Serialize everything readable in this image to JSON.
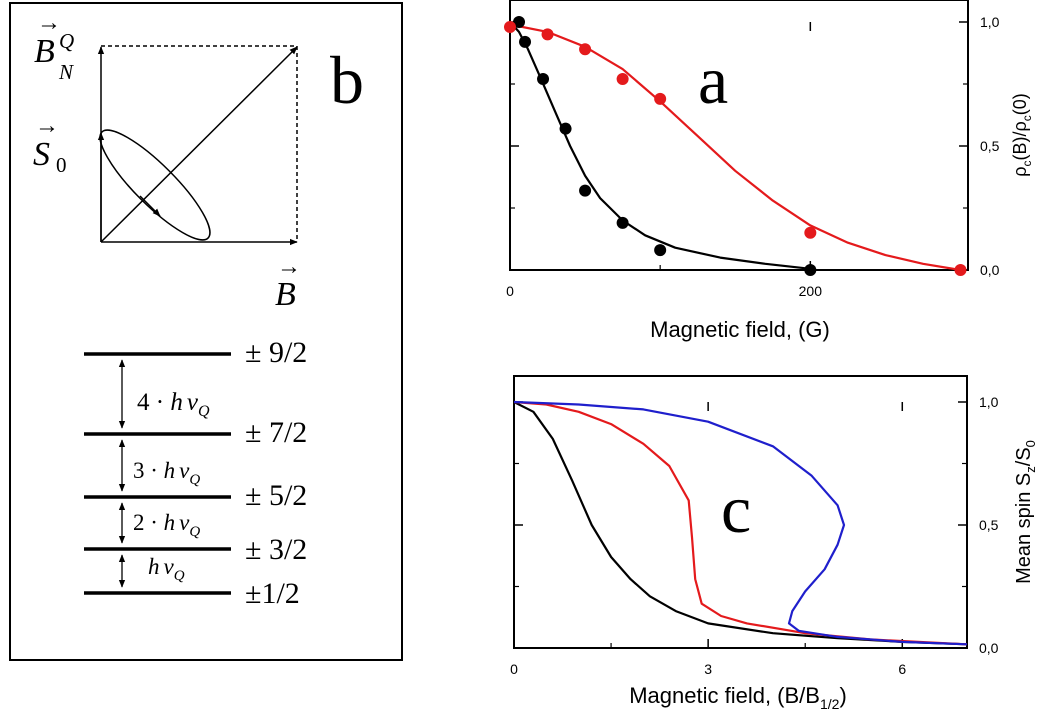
{
  "panel_b": {
    "label": "b",
    "vectors": {
      "bnq_main": "B",
      "bnq_sup": "Q",
      "bnq_sub": "N",
      "s_main": "S",
      "s_sub": "0",
      "b_main": "B"
    },
    "levels": [
      "± 9/2",
      "± 7/2",
      "± 5/2",
      "± 3/2",
      "±1/2"
    ],
    "gaps": [
      {
        "coef": "4 · ",
        "h": "h",
        "nu": "ν",
        "sub": "Q"
      },
      {
        "coef": "3 · ",
        "h": "h",
        "nu": "ν",
        "sub": "Q"
      },
      {
        "coef": "2 · ",
        "h": "h",
        "nu": "ν",
        "sub": "Q"
      },
      {
        "coef": "",
        "h": "h",
        "nu": "ν",
        "sub": "Q"
      }
    ],
    "colors": {
      "line": "#000000"
    }
  },
  "chart_data": [
    {
      "type": "scatter",
      "label": "a",
      "xlabel": "Magnetic field, (G)",
      "ylabel": {
        "p1": "ρ",
        "s1": "c",
        "p2": "(B)/ρ",
        "s2": "c",
        "p3": "(0)"
      },
      "xlim": [
        0,
        305
      ],
      "ylim": [
        0,
        1.0
      ],
      "xticks": [
        0,
        200
      ],
      "xticklabels": [
        "0",
        "200"
      ],
      "yticks": [
        0,
        0.5,
        1.0
      ],
      "yticklabels": [
        "0,0",
        "0,5",
        "1,0"
      ],
      "y_axis_side": "right",
      "series": [
        {
          "color": "#000000",
          "points": [
            [
              6,
              1.0
            ],
            [
              10,
              0.92
            ],
            [
              22,
              0.77
            ],
            [
              37,
              0.57
            ],
            [
              50,
              0.32
            ],
            [
              75,
              0.19
            ],
            [
              100,
              0.08
            ],
            [
              200,
              0.0
            ]
          ],
          "curve": [
            [
              0,
              1.0
            ],
            [
              6,
              0.96
            ],
            [
              12,
              0.89
            ],
            [
              20,
              0.78
            ],
            [
              30,
              0.64
            ],
            [
              40,
              0.5
            ],
            [
              50,
              0.38
            ],
            [
              60,
              0.29
            ],
            [
              75,
              0.2
            ],
            [
              90,
              0.14
            ],
            [
              110,
              0.09
            ],
            [
              140,
              0.05
            ],
            [
              170,
              0.025
            ],
            [
              200,
              0.005
            ]
          ]
        },
        {
          "color": "#e41a1c",
          "points": [
            [
              0,
              0.98
            ],
            [
              25,
              0.95
            ],
            [
              50,
              0.89
            ],
            [
              75,
              0.77
            ],
            [
              100,
              0.69
            ],
            [
              200,
              0.15
            ],
            [
              300,
              0.0
            ]
          ],
          "curve": [
            [
              0,
              0.99
            ],
            [
              25,
              0.96
            ],
            [
              50,
              0.9
            ],
            [
              75,
              0.81
            ],
            [
              100,
              0.68
            ],
            [
              125,
              0.54
            ],
            [
              150,
              0.4
            ],
            [
              175,
              0.28
            ],
            [
              200,
              0.18
            ],
            [
              225,
              0.11
            ],
            [
              250,
              0.06
            ],
            [
              275,
              0.025
            ],
            [
              300,
              0.0
            ]
          ]
        }
      ]
    },
    {
      "type": "line",
      "label": "c",
      "xlabel": {
        "main": "Magnetic field, (B/B",
        "sub": "1/2",
        "close": ")"
      },
      "ylabel": {
        "main": "Mean spin S",
        "sub1": "z",
        "mid": "/S",
        "sub2": "0"
      },
      "xlim": [
        0,
        7
      ],
      "ylim": [
        0,
        1.0
      ],
      "xticks": [
        0,
        3,
        6
      ],
      "xticklabels": [
        "0",
        "3",
        "6"
      ],
      "yticks": [
        0,
        0.5,
        1.0
      ],
      "yticklabels": [
        "0,0",
        "0,5",
        "1,0"
      ],
      "y_axis_side": "right",
      "series": [
        {
          "color": "#000000",
          "points": [
            [
              0,
              1.0
            ],
            [
              0.3,
              0.96
            ],
            [
              0.6,
              0.85
            ],
            [
              0.9,
              0.68
            ],
            [
              1.2,
              0.5
            ],
            [
              1.5,
              0.37
            ],
            [
              1.8,
              0.28
            ],
            [
              2.1,
              0.21
            ],
            [
              2.5,
              0.15
            ],
            [
              3.0,
              0.1
            ],
            [
              4.0,
              0.06
            ],
            [
              5.0,
              0.04
            ],
            [
              6.0,
              0.025
            ],
            [
              7.0,
              0.015
            ]
          ]
        },
        {
          "color": "#e41a1c",
          "points": [
            [
              0,
              1.0
            ],
            [
              0.5,
              0.99
            ],
            [
              1.0,
              0.96
            ],
            [
              1.5,
              0.91
            ],
            [
              2.0,
              0.83
            ],
            [
              2.4,
              0.74
            ],
            [
              2.7,
              0.6
            ],
            [
              2.75,
              0.45
            ],
            [
              2.8,
              0.28
            ],
            [
              2.9,
              0.18
            ],
            [
              3.2,
              0.13
            ],
            [
              3.6,
              0.1
            ],
            [
              4.5,
              0.06
            ],
            [
              5.5,
              0.035
            ],
            [
              7.0,
              0.015
            ]
          ]
        },
        {
          "color": "#1f1fcc",
          "points": [
            [
              0,
              1.0
            ],
            [
              1.0,
              0.99
            ],
            [
              2.0,
              0.97
            ],
            [
              3.0,
              0.92
            ],
            [
              4.0,
              0.82
            ],
            [
              4.6,
              0.7
            ],
            [
              5.0,
              0.58
            ],
            [
              5.1,
              0.5
            ],
            [
              5.0,
              0.42
            ],
            [
              4.8,
              0.32
            ],
            [
              4.5,
              0.23
            ],
            [
              4.3,
              0.15
            ],
            [
              4.25,
              0.1
            ],
            [
              4.4,
              0.07
            ],
            [
              5.0,
              0.045
            ],
            [
              6.0,
              0.025
            ],
            [
              7.0,
              0.015
            ]
          ]
        }
      ]
    }
  ]
}
